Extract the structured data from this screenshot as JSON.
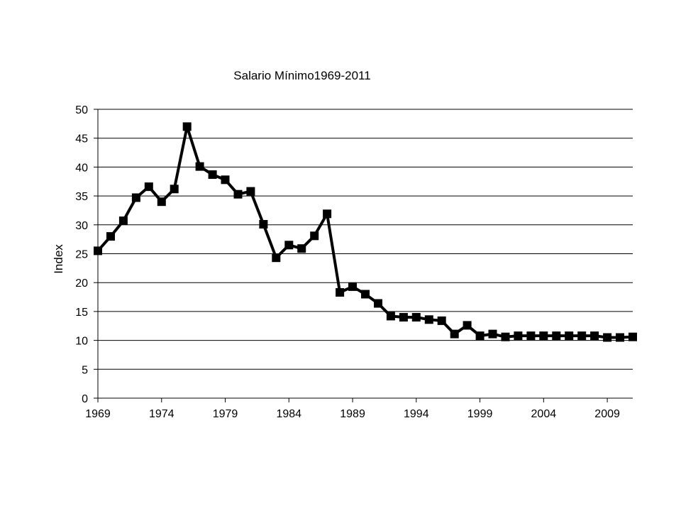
{
  "chart_data": {
    "type": "line",
    "title": "Salario Mínimo1969-2011",
    "xlabel": "",
    "ylabel": "Index",
    "xlim": [
      1969,
      2011
    ],
    "ylim": [
      0,
      50
    ],
    "y_ticks": [
      0,
      5,
      10,
      15,
      20,
      25,
      30,
      35,
      40,
      45,
      50
    ],
    "x_ticks": [
      1969,
      1974,
      1979,
      1984,
      1989,
      1994,
      1999,
      2004,
      2009
    ],
    "grid": "horizontal",
    "line_color": "#000000",
    "marker": "square",
    "x": [
      1969,
      1970,
      1971,
      1972,
      1973,
      1974,
      1975,
      1976,
      1977,
      1978,
      1979,
      1980,
      1981,
      1982,
      1983,
      1984,
      1985,
      1986,
      1987,
      1988,
      1989,
      1990,
      1991,
      1992,
      1993,
      1994,
      1995,
      1996,
      1997,
      1998,
      1999,
      2000,
      2001,
      2002,
      2003,
      2004,
      2005,
      2006,
      2007,
      2008,
      2009,
      2010,
      2011
    ],
    "series": [
      {
        "values": [
          25.5,
          28.0,
          30.7,
          34.7,
          36.6,
          34.0,
          36.2,
          47.0,
          40.1,
          38.7,
          37.8,
          35.3,
          35.8,
          30.1,
          24.3,
          26.5,
          25.9,
          28.1,
          31.9,
          18.3,
          19.3,
          18.0,
          16.4,
          14.2,
          14.0,
          14.0,
          13.6,
          13.4,
          11.1,
          12.6,
          10.8,
          11.1,
          10.6,
          10.8,
          10.8,
          10.8,
          10.8,
          10.8,
          10.8,
          10.8,
          10.5,
          10.5,
          10.6
        ]
      }
    ]
  }
}
